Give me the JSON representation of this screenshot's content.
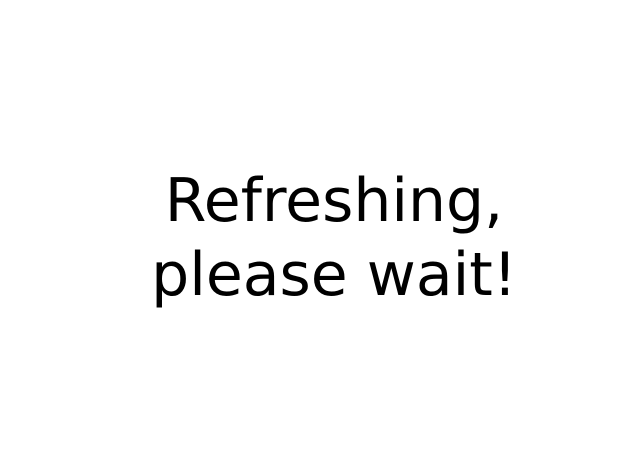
{
  "message": {
    "line1": "Refreshing,",
    "line2": "please wait!"
  }
}
